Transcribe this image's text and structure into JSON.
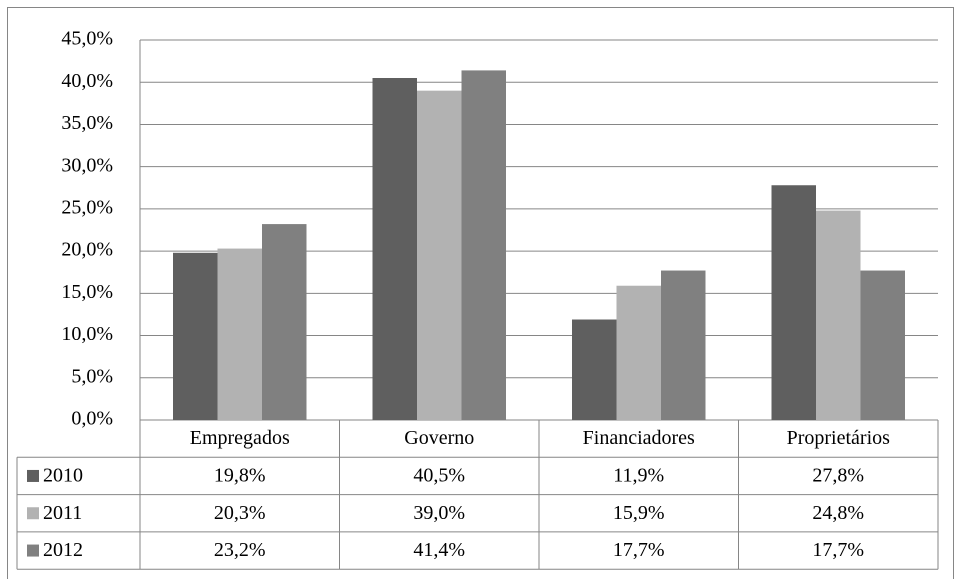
{
  "chart_data": {
    "type": "bar",
    "categories": [
      "Empregados",
      "Governo",
      "Financiadores",
      "Proprietários"
    ],
    "series": [
      {
        "name": "2010",
        "color": "#5f5f5f",
        "values": [
          19.8,
          40.5,
          11.9,
          27.8
        ],
        "value_labels": [
          "19,8%",
          "40,5%",
          "11,9%",
          "27,8%"
        ]
      },
      {
        "name": "2011",
        "color": "#b2b2b2",
        "values": [
          20.3,
          39.0,
          15.9,
          24.8
        ],
        "value_labels": [
          "20,3%",
          "39,0%",
          "15,9%",
          "24,8%"
        ]
      },
      {
        "name": "2012",
        "color": "#808080",
        "values": [
          23.2,
          41.4,
          17.7,
          17.7
        ],
        "value_labels": [
          "23,2%",
          "41,4%",
          "17,7%",
          "17,7%"
        ]
      }
    ],
    "ylim": [
      0,
      45
    ],
    "yticks": [
      {
        "value": 0,
        "label": "0,0%"
      },
      {
        "value": 5,
        "label": "5,0%"
      },
      {
        "value": 10,
        "label": "10,0%"
      },
      {
        "value": 15,
        "label": "15,0%"
      },
      {
        "value": 20,
        "label": "20,0%"
      },
      {
        "value": 25,
        "label": "25,0%"
      },
      {
        "value": 30,
        "label": "30,0%"
      },
      {
        "value": 35,
        "label": "35,0%"
      },
      {
        "value": 40,
        "label": "40,0%"
      },
      {
        "value": 45,
        "label": "45,0%"
      }
    ],
    "grid": true
  }
}
